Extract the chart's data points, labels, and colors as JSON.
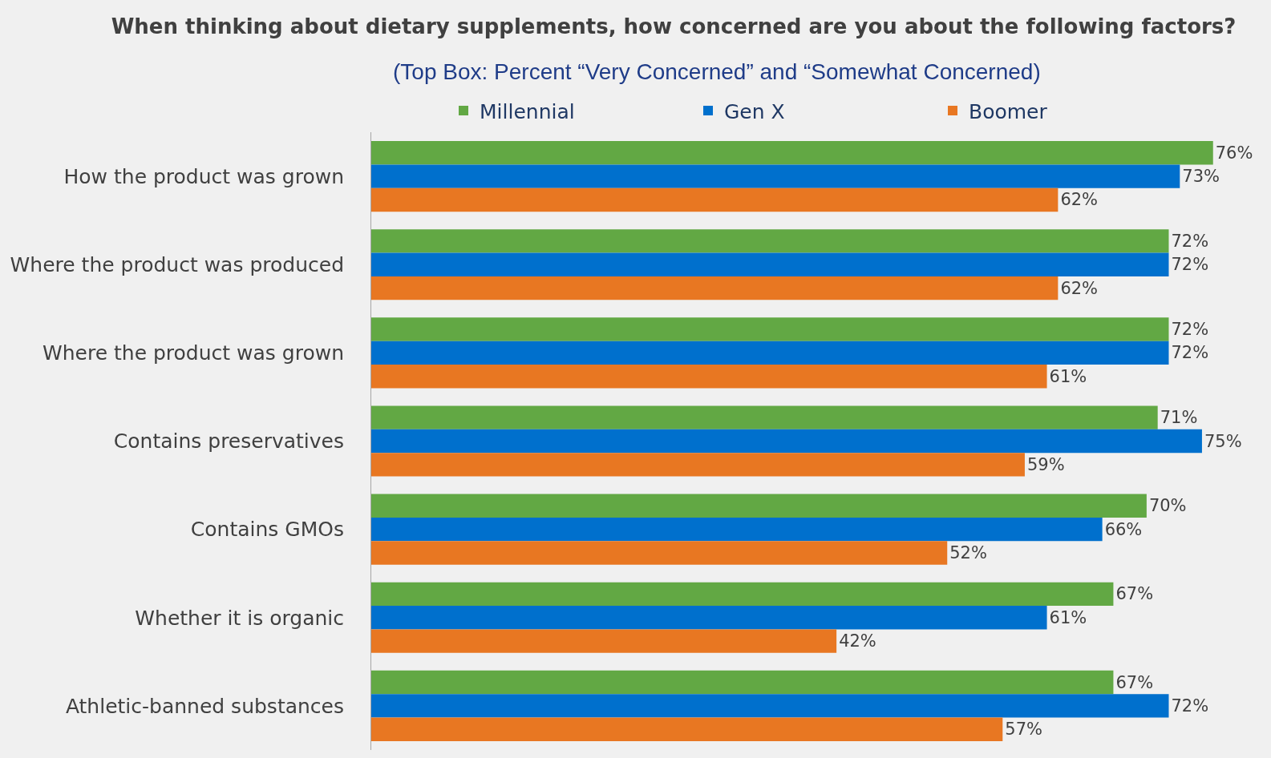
{
  "chart_data": {
    "type": "bar",
    "orientation": "horizontal",
    "title": "When thinking about dietary supplements, how concerned are you about the following factors?",
    "subtitle": "(Top Box: Percent “Very Concerned” and “Somewhat Concerned)",
    "categories": [
      "How the product was grown",
      "Where the product was produced",
      "Where the product was grown",
      "Contains preservatives",
      "Contains GMOs",
      "Whether it is organic",
      "Athletic-banned substances"
    ],
    "series": [
      {
        "name": "Millennial",
        "color": "#62a844",
        "values": [
          76,
          72,
          72,
          71,
          70,
          67,
          67
        ],
        "value_labels": [
          "76%",
          "72%",
          "72%",
          "71%",
          "70%",
          "67%",
          "67%"
        ]
      },
      {
        "name": "Gen X",
        "color": "#0070cd",
        "values": [
          73,
          72,
          72,
          75,
          66,
          61,
          72
        ],
        "value_labels": [
          "73%",
          "72%",
          "72%",
          "75%",
          "66%",
          "61%",
          "72%"
        ]
      },
      {
        "name": "Boomer",
        "color": "#e87722",
        "values": [
          62,
          62,
          61,
          59,
          52,
          42,
          57
        ],
        "value_labels": [
          "62%",
          "62%",
          "61%",
          "59%",
          "52%",
          "42%",
          "57%"
        ]
      }
    ],
    "tick_labels": "y",
    "legend": "top"
  }
}
